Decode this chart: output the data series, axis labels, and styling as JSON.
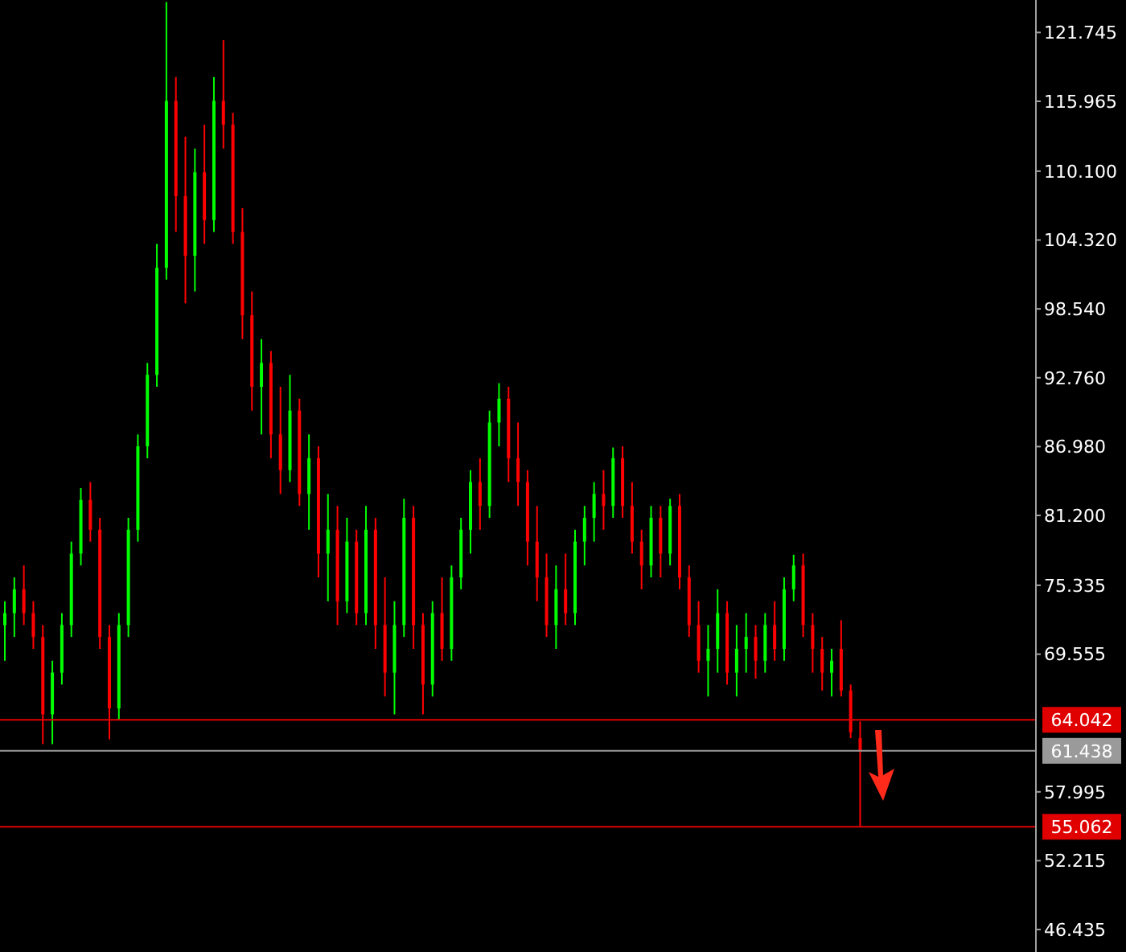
{
  "chart_data": {
    "type": "candlestick",
    "categories": [
      null,
      null,
      null,
      null,
      null,
      null,
      null,
      null,
      null,
      null,
      null,
      null,
      null,
      null,
      null,
      null,
      null,
      null,
      null,
      null,
      null,
      null,
      null,
      null,
      null,
      null,
      null,
      null,
      null,
      null,
      null,
      null,
      null,
      null,
      null,
      null,
      null,
      null,
      null,
      null,
      null,
      null,
      null,
      null,
      null,
      null,
      null,
      null,
      null,
      null,
      null,
      null,
      null,
      null,
      null,
      null,
      null,
      null,
      null,
      null,
      null,
      null,
      null,
      null,
      null,
      null,
      null,
      null,
      null,
      null,
      null,
      null,
      null,
      null,
      null,
      null,
      null,
      null,
      null,
      null,
      null,
      null,
      null,
      null,
      null,
      null,
      null,
      null,
      null,
      null,
      null,
      null,
      null,
      null,
      null,
      null,
      null,
      null,
      null,
      null,
      null,
      null,
      null,
      null,
      null,
      null,
      null,
      null,
      null
    ],
    "ohlc": [
      [
        72,
        74,
        69,
        73
      ],
      [
        73,
        76,
        71,
        75
      ],
      [
        75,
        77,
        72,
        73
      ],
      [
        73,
        74,
        70,
        71
      ],
      [
        71,
        72,
        62,
        64.5
      ],
      [
        64.5,
        69,
        62,
        68
      ],
      [
        68,
        73,
        67,
        72
      ],
      [
        72,
        79,
        71,
        78
      ],
      [
        78,
        83.5,
        77,
        82.5
      ],
      [
        82.5,
        84,
        79,
        80
      ],
      [
        80,
        81,
        70,
        71
      ],
      [
        71,
        72,
        62.4,
        65
      ],
      [
        65,
        73,
        64,
        72
      ],
      [
        72,
        81,
        71,
        80
      ],
      [
        80,
        88,
        79,
        87
      ],
      [
        87,
        94,
        86,
        93
      ],
      [
        93,
        104,
        92,
        102
      ],
      [
        102,
        124.3,
        101,
        116
      ],
      [
        116,
        118,
        105,
        108
      ],
      [
        108,
        113,
        99,
        103
      ],
      [
        103,
        112,
        100,
        110
      ],
      [
        110,
        114,
        104,
        106
      ],
      [
        106,
        118,
        105,
        116
      ],
      [
        116,
        121.1,
        112,
        114
      ],
      [
        114,
        115,
        104,
        105
      ],
      [
        105,
        107,
        96,
        98
      ],
      [
        98,
        100,
        90,
        92
      ],
      [
        92,
        96,
        88,
        94
      ],
      [
        94,
        95,
        86,
        88
      ],
      [
        88,
        92,
        83,
        85
      ],
      [
        85,
        93,
        84,
        90
      ],
      [
        90,
        91,
        82,
        83
      ],
      [
        83,
        88,
        80,
        86
      ],
      [
        86,
        87,
        76,
        78
      ],
      [
        78,
        83,
        74,
        80
      ],
      [
        80,
        82,
        72,
        74
      ],
      [
        74,
        81,
        73,
        79
      ],
      [
        79,
        80,
        72,
        73
      ],
      [
        73,
        82,
        72,
        80
      ],
      [
        80,
        81,
        70,
        72
      ],
      [
        72,
        76,
        66,
        68
      ],
      [
        68,
        74,
        64.5,
        72
      ],
      [
        72,
        82.6,
        71,
        81
      ],
      [
        81,
        82,
        70,
        72
      ],
      [
        72,
        73,
        64.5,
        67
      ],
      [
        67,
        74,
        66,
        73
      ],
      [
        73,
        76,
        69,
        70
      ],
      [
        70,
        77,
        69,
        76
      ],
      [
        76,
        81,
        75,
        80
      ],
      [
        80,
        85,
        78,
        84
      ],
      [
        84,
        86,
        80,
        82
      ],
      [
        82,
        90,
        81,
        89
      ],
      [
        89,
        92.3,
        87,
        91
      ],
      [
        91,
        92,
        84,
        86
      ],
      [
        86,
        89,
        82,
        84
      ],
      [
        84,
        85,
        77,
        79
      ],
      [
        79,
        82,
        74,
        76
      ],
      [
        76,
        78,
        71,
        72
      ],
      [
        72,
        77,
        70,
        75
      ],
      [
        75,
        78,
        72,
        73
      ],
      [
        73,
        80,
        72,
        79
      ],
      [
        79,
        82,
        77,
        81
      ],
      [
        81,
        84,
        79,
        83
      ],
      [
        83,
        85,
        80,
        82
      ],
      [
        82,
        86.9,
        81,
        86
      ],
      [
        86,
        87,
        81,
        82
      ],
      [
        82,
        84,
        78,
        79
      ],
      [
        79,
        80,
        75,
        77
      ],
      [
        77,
        82,
        76,
        81
      ],
      [
        81,
        82,
        76,
        78
      ],
      [
        78,
        82.6,
        77,
        82
      ],
      [
        82,
        83,
        75,
        76
      ],
      [
        76,
        77,
        71,
        72
      ],
      [
        72,
        74,
        68,
        69
      ],
      [
        69,
        72,
        66,
        70
      ],
      [
        70,
        75,
        68,
        73
      ],
      [
        73,
        74,
        67,
        68
      ],
      [
        68,
        72,
        66,
        70
      ],
      [
        70,
        73,
        68,
        71
      ],
      [
        71,
        72,
        67.5,
        69
      ],
      [
        69,
        73,
        68,
        72
      ],
      [
        72,
        74,
        69,
        70
      ],
      [
        70,
        76,
        69,
        75
      ],
      [
        75,
        77.9,
        74,
        77
      ],
      [
        77,
        78,
        71,
        72
      ],
      [
        72,
        73,
        68,
        70
      ],
      [
        70,
        71,
        66.5,
        68
      ],
      [
        68,
        70,
        66,
        69
      ],
      [
        70,
        72.4,
        66,
        66.5
      ],
      [
        66.5,
        67,
        62.5,
        63
      ],
      [
        62.5,
        63.9,
        55.06,
        61.4
      ],
      null,
      null,
      null,
      null,
      null,
      null,
      null,
      null,
      null,
      null,
      null,
      null,
      null,
      null,
      null,
      null,
      null,
      null
    ],
    "ylim": [
      44.55,
      124.47
    ],
    "yticks": [
      121.745,
      115.965,
      {
        "value": 110.1,
        "label": "110.100"
      },
      {
        "value": 104.32,
        "label": "104.320"
      },
      {
        "value": 98.54,
        "label": "98.540"
      },
      {
        "value": 92.76,
        "label": "92.760"
      },
      {
        "value": 86.98,
        "label": "86.980"
      },
      {
        "value": 81.2,
        "label": "81.200"
      },
      75.335,
      69.555,
      57.995,
      52.215,
      46.435
    ],
    "tick_labels": "y",
    "ref_lines": [
      {
        "axis": "y",
        "value": 64.042,
        "label": "64.042",
        "color": "#e00000"
      },
      {
        "axis": "y",
        "value": 61.438,
        "label": "61.438",
        "color": "#9a9a9a"
      },
      {
        "axis": "y",
        "value": 55.062,
        "label": "55.062",
        "color": "#e00000"
      }
    ]
  }
}
